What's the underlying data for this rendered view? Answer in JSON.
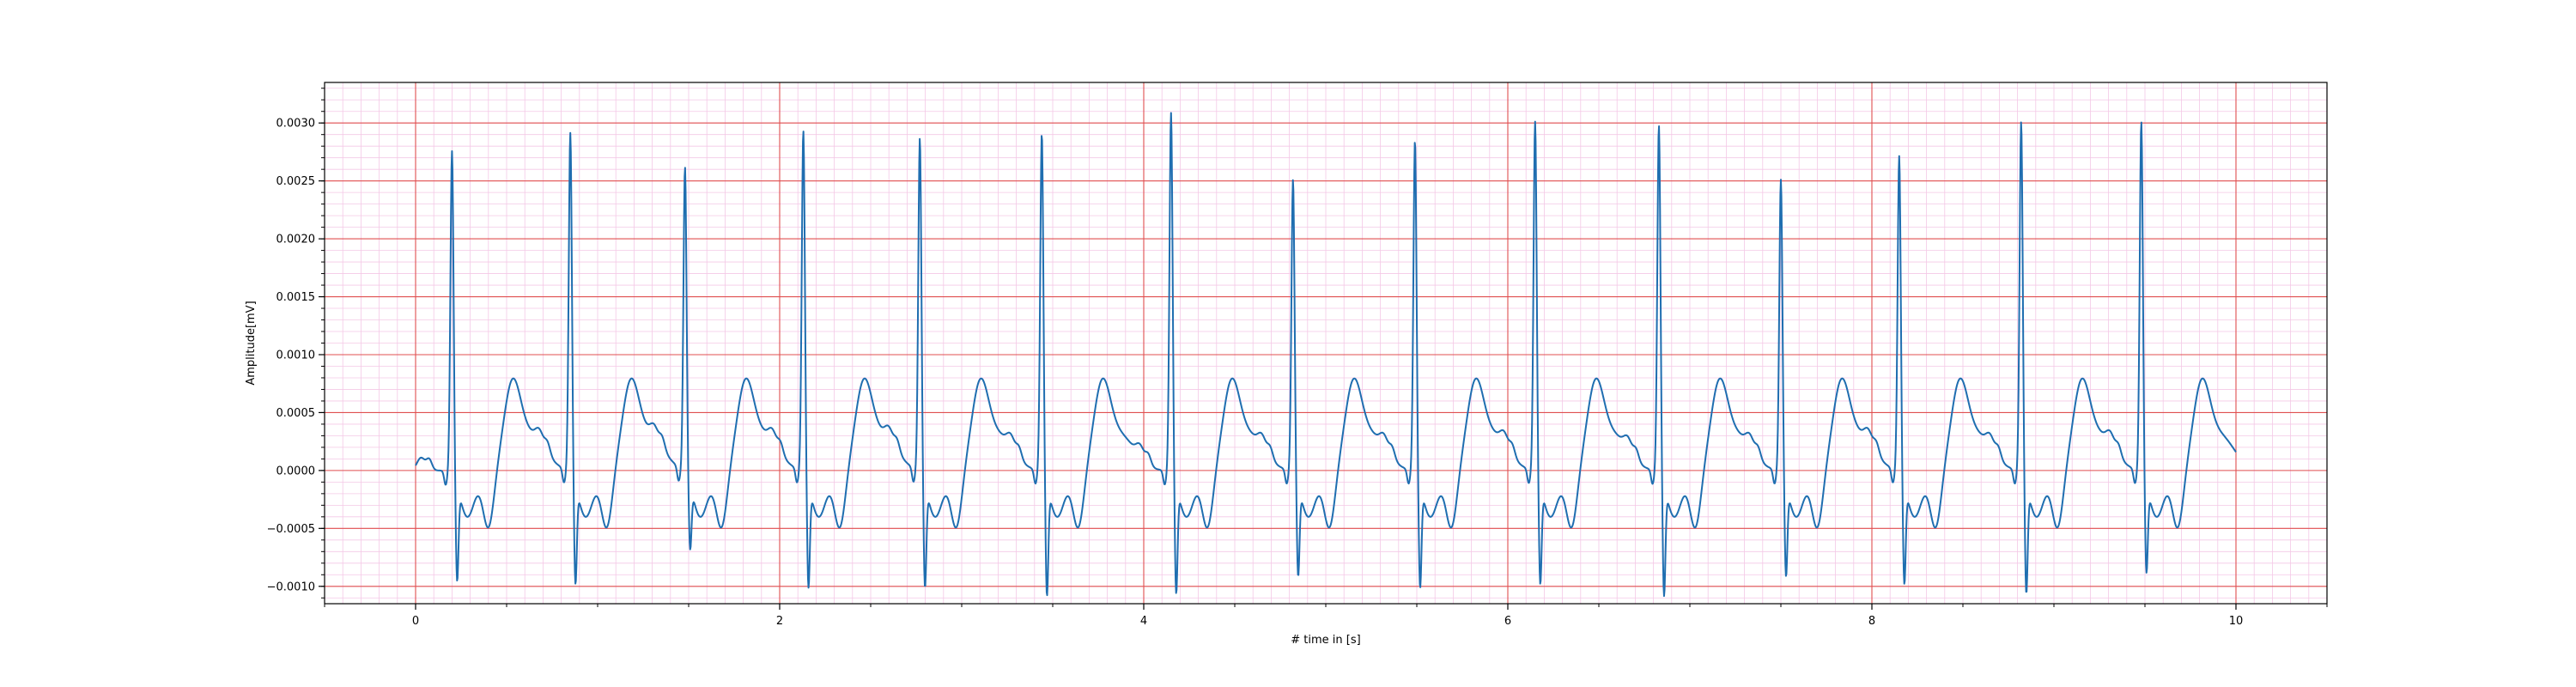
{
  "chart_data": {
    "type": "line",
    "title": "",
    "xlabel": "# time in [s]",
    "ylabel": "Amplitude[mV]",
    "xlim": [
      -0.5,
      10.5
    ],
    "ylim": [
      -0.00115,
      0.00335
    ],
    "x_ticks": [
      0,
      2,
      4,
      6,
      8,
      10
    ],
    "x_tick_labels": [
      "0",
      "2",
      "4",
      "6",
      "8",
      "10"
    ],
    "y_ticks": [
      -0.001,
      -0.0005,
      0.0,
      0.0005,
      0.001,
      0.0015,
      0.002,
      0.0025,
      0.003
    ],
    "y_tick_labels": [
      "−0.0010",
      "−0.0005",
      "0.0000",
      "0.0005",
      "0.0010",
      "0.0015",
      "0.0020",
      "0.0025",
      "0.0030"
    ],
    "grid": {
      "major": true,
      "minor": true,
      "major_color": "#e05050",
      "minor_color": "#f4c8e6",
      "minor_x_step": 0.1,
      "minor_y_step": 0.0001
    },
    "line_color": "#1f6eb0",
    "sample_rate_hz": 360,
    "duration_s": 10,
    "beats": [
      {
        "t": 0.2,
        "r": 0.0028,
        "s": -0.00082
      },
      {
        "t": 0.85,
        "r": 0.00295,
        "s": -0.00085
      },
      {
        "t": 1.48,
        "r": 0.00265,
        "s": -0.00055
      },
      {
        "t": 2.13,
        "r": 0.00297,
        "s": -0.00088
      },
      {
        "t": 2.77,
        "r": 0.0029,
        "s": -0.00088
      },
      {
        "t": 3.44,
        "r": 0.00295,
        "s": -0.00095
      },
      {
        "t": 4.15,
        "r": 0.00313,
        "s": -0.00093
      },
      {
        "t": 4.82,
        "r": 0.00255,
        "s": -0.00078
      },
      {
        "t": 5.49,
        "r": 0.00289,
        "s": -0.00088
      },
      {
        "t": 6.15,
        "r": 0.00305,
        "s": -0.00085
      },
      {
        "t": 6.83,
        "r": 0.00302,
        "s": -0.00095
      },
      {
        "t": 7.5,
        "r": 0.00255,
        "s": -0.00078
      },
      {
        "t": 8.15,
        "r": 0.00275,
        "s": -0.00085
      },
      {
        "t": 8.82,
        "r": 0.00305,
        "s": -0.00093
      },
      {
        "t": 9.48,
        "r": 0.00305,
        "s": -0.00075
      }
    ]
  }
}
